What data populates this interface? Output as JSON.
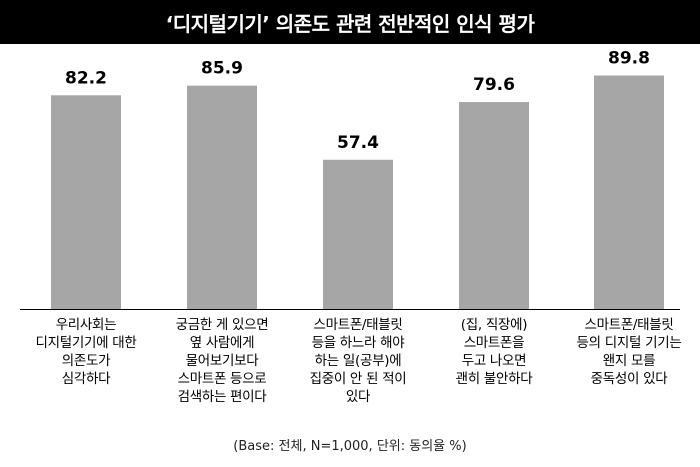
{
  "chart_data": {
    "type": "bar",
    "title": "‘디지털기기’ 의존도 관련 전반적인 인식 평가",
    "categories": [
      "우리사회는\n디지털기기에 대한\n의존도가\n심각하다",
      "궁금한 게 있으면\n옆 사람에게\n물어보기보다\n스마트폰 등으로\n검색하는 편이다",
      "스마트폰/태블릿\n등을 하느라 해야\n하는 일(공부)에\n집중이 안 된 적이\n있다",
      "(집, 직장에)\n스마트폰을\n두고 나오면\n괜히 불안하다",
      "스마트폰/태블릿\n등의 디지털 기기는\n왠지 모를\n중독성이 있다"
    ],
    "values": [
      82.2,
      85.9,
      57.4,
      79.6,
      89.8
    ],
    "value_labels": [
      "82.2",
      "85.9",
      "57.4",
      "79.6",
      "89.8"
    ],
    "ylim": [
      0,
      100
    ],
    "bar_color": "#a6a6a6",
    "grid": false,
    "note": "(Base: 전체, N=1,000, 단위: 동의율 %)"
  }
}
